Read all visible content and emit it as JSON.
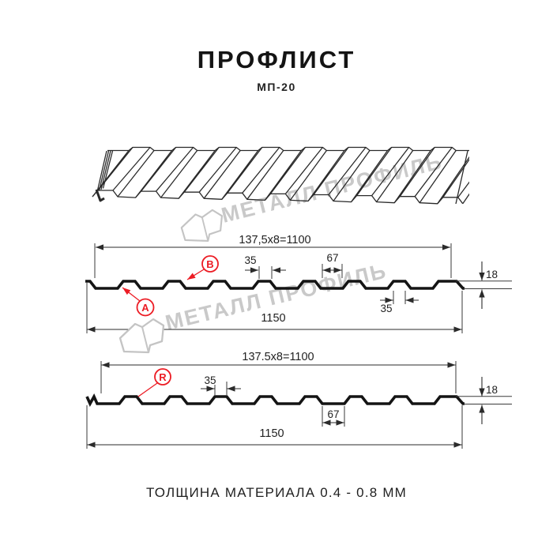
{
  "header": {
    "title": "ПРОФЛИСТ",
    "subtitle": "МП-20"
  },
  "watermark": {
    "text": "МЕТАЛЛ ПРОФИЛЬ",
    "logo": "metal-profil-origami-logo"
  },
  "section1": {
    "labels": {
      "a": "A",
      "b": "B"
    },
    "dims": {
      "coverage": "137,5x8=1100",
      "crest_width_top": "35",
      "valley_width": "67",
      "height": "18",
      "crest_width_bottom": "35",
      "overall_width": "1150"
    }
  },
  "section2": {
    "labels": {
      "r": "R"
    },
    "dims": {
      "coverage": "137.5x8=1100",
      "crest_width_top": "35",
      "valley_width": "67",
      "height": "18",
      "overall_width": "1150"
    }
  },
  "footer": {
    "thickness_note": "ТОЛЩИНА МАТЕРИАЛА 0.4 - 0.8 ММ"
  },
  "colors": {
    "accent_red": "#ec1c24",
    "line": "#141414",
    "watermark": "#c9c9c9"
  }
}
